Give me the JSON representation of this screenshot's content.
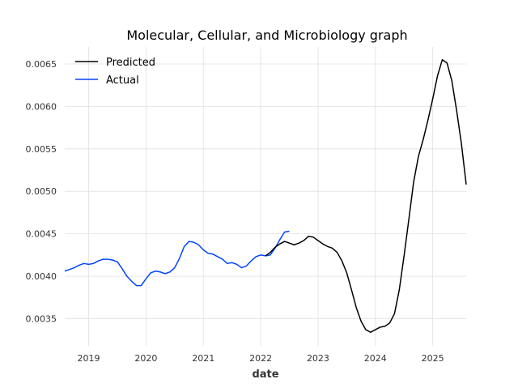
{
  "chart_data": {
    "type": "line",
    "title": "Molecular, Cellular, and Microbiology graph",
    "xlabel": "date",
    "ylabel": "",
    "x_ticks": [
      "2019",
      "2020",
      "2021",
      "2022",
      "2023",
      "2024",
      "2025"
    ],
    "y_ticks": [
      "0.0035",
      "0.0040",
      "0.0045",
      "0.0050",
      "0.0055",
      "0.0060",
      "0.0065"
    ],
    "xlim": [
      "2018-08-01",
      "2025-08-01"
    ],
    "ylim": [
      0.00318,
      0.0067
    ],
    "grid": true,
    "legend_position": "top-left",
    "series": [
      {
        "name": "Predicted",
        "color": "#000000",
        "points": [
          [
            "2022-02-01",
            0.00424
          ],
          [
            "2022-03-01",
            0.00428
          ],
          [
            "2022-04-01",
            0.00434
          ],
          [
            "2022-05-01",
            0.00438
          ],
          [
            "2022-06-01",
            0.00441
          ],
          [
            "2022-07-01",
            0.00439
          ],
          [
            "2022-08-01",
            0.00437
          ],
          [
            "2022-09-01",
            0.00439
          ],
          [
            "2022-10-01",
            0.00442
          ],
          [
            "2022-11-01",
            0.00447
          ],
          [
            "2022-12-01",
            0.00446
          ],
          [
            "2023-01-01",
            0.00442
          ],
          [
            "2023-02-01",
            0.00438
          ],
          [
            "2023-03-01",
            0.00435
          ],
          [
            "2023-04-01",
            0.00433
          ],
          [
            "2023-05-01",
            0.00428
          ],
          [
            "2023-06-01",
            0.00418
          ],
          [
            "2023-07-01",
            0.00404
          ],
          [
            "2023-08-01",
            0.00384
          ],
          [
            "2023-09-01",
            0.00363
          ],
          [
            "2023-10-01",
            0.00347
          ],
          [
            "2023-11-01",
            0.00337
          ],
          [
            "2023-12-01",
            0.00334
          ],
          [
            "2024-01-01",
            0.00337
          ],
          [
            "2024-02-01",
            0.0034
          ],
          [
            "2024-03-01",
            0.00341
          ],
          [
            "2024-04-01",
            0.00345
          ],
          [
            "2024-05-01",
            0.00356
          ],
          [
            "2024-06-01",
            0.00384
          ],
          [
            "2024-07-01",
            0.00424
          ],
          [
            "2024-08-01",
            0.00467
          ],
          [
            "2024-09-01",
            0.00511
          ],
          [
            "2024-10-01",
            0.00541
          ],
          [
            "2024-11-01",
            0.00561
          ],
          [
            "2024-12-01",
            0.00584
          ],
          [
            "2025-01-01",
            0.00609
          ],
          [
            "2025-02-01",
            0.00636
          ],
          [
            "2025-03-01",
            0.00655
          ],
          [
            "2025-04-01",
            0.00651
          ],
          [
            "2025-05-01",
            0.0063
          ],
          [
            "2025-06-01",
            0.00595
          ],
          [
            "2025-07-01",
            0.00556
          ],
          [
            "2025-08-01",
            0.00508
          ]
        ]
      },
      {
        "name": "Actual",
        "color": "#0044ff",
        "points": [
          [
            "2018-08-01",
            0.00406
          ],
          [
            "2018-09-01",
            0.00408
          ],
          [
            "2018-10-01",
            0.0041
          ],
          [
            "2018-11-01",
            0.00413
          ],
          [
            "2018-12-01",
            0.00415
          ],
          [
            "2019-01-01",
            0.00414
          ],
          [
            "2019-02-01",
            0.00415
          ],
          [
            "2019-03-01",
            0.00418
          ],
          [
            "2019-04-01",
            0.0042
          ],
          [
            "2019-05-01",
            0.0042
          ],
          [
            "2019-06-01",
            0.00419
          ],
          [
            "2019-07-01",
            0.00417
          ],
          [
            "2019-08-01",
            0.00409
          ],
          [
            "2019-09-01",
            0.004
          ],
          [
            "2019-10-01",
            0.00394
          ],
          [
            "2019-11-01",
            0.00389
          ],
          [
            "2019-12-01",
            0.00389
          ],
          [
            "2020-01-01",
            0.00397
          ],
          [
            "2020-02-01",
            0.00404
          ],
          [
            "2020-03-01",
            0.00406
          ],
          [
            "2020-04-01",
            0.00405
          ],
          [
            "2020-05-01",
            0.00403
          ],
          [
            "2020-06-01",
            0.00405
          ],
          [
            "2020-07-01",
            0.0041
          ],
          [
            "2020-08-01",
            0.00421
          ],
          [
            "2020-09-01",
            0.00435
          ],
          [
            "2020-10-01",
            0.00441
          ],
          [
            "2020-11-01",
            0.0044
          ],
          [
            "2020-12-01",
            0.00437
          ],
          [
            "2021-01-01",
            0.00431
          ],
          [
            "2021-02-01",
            0.00427
          ],
          [
            "2021-03-01",
            0.00426
          ],
          [
            "2021-04-01",
            0.00423
          ],
          [
            "2021-05-01",
            0.0042
          ],
          [
            "2021-06-01",
            0.00415
          ],
          [
            "2021-07-01",
            0.00416
          ],
          [
            "2021-08-01",
            0.00414
          ],
          [
            "2021-09-01",
            0.0041
          ],
          [
            "2021-10-01",
            0.00412
          ],
          [
            "2021-11-01",
            0.00418
          ],
          [
            "2021-12-01",
            0.00423
          ],
          [
            "2022-01-01",
            0.00425
          ],
          [
            "2022-02-01",
            0.00424
          ],
          [
            "2022-03-01",
            0.00425
          ],
          [
            "2022-04-01",
            0.00433
          ],
          [
            "2022-05-01",
            0.00443
          ],
          [
            "2022-06-01",
            0.00452
          ],
          [
            "2022-07-01",
            0.00453
          ]
        ]
      }
    ]
  }
}
